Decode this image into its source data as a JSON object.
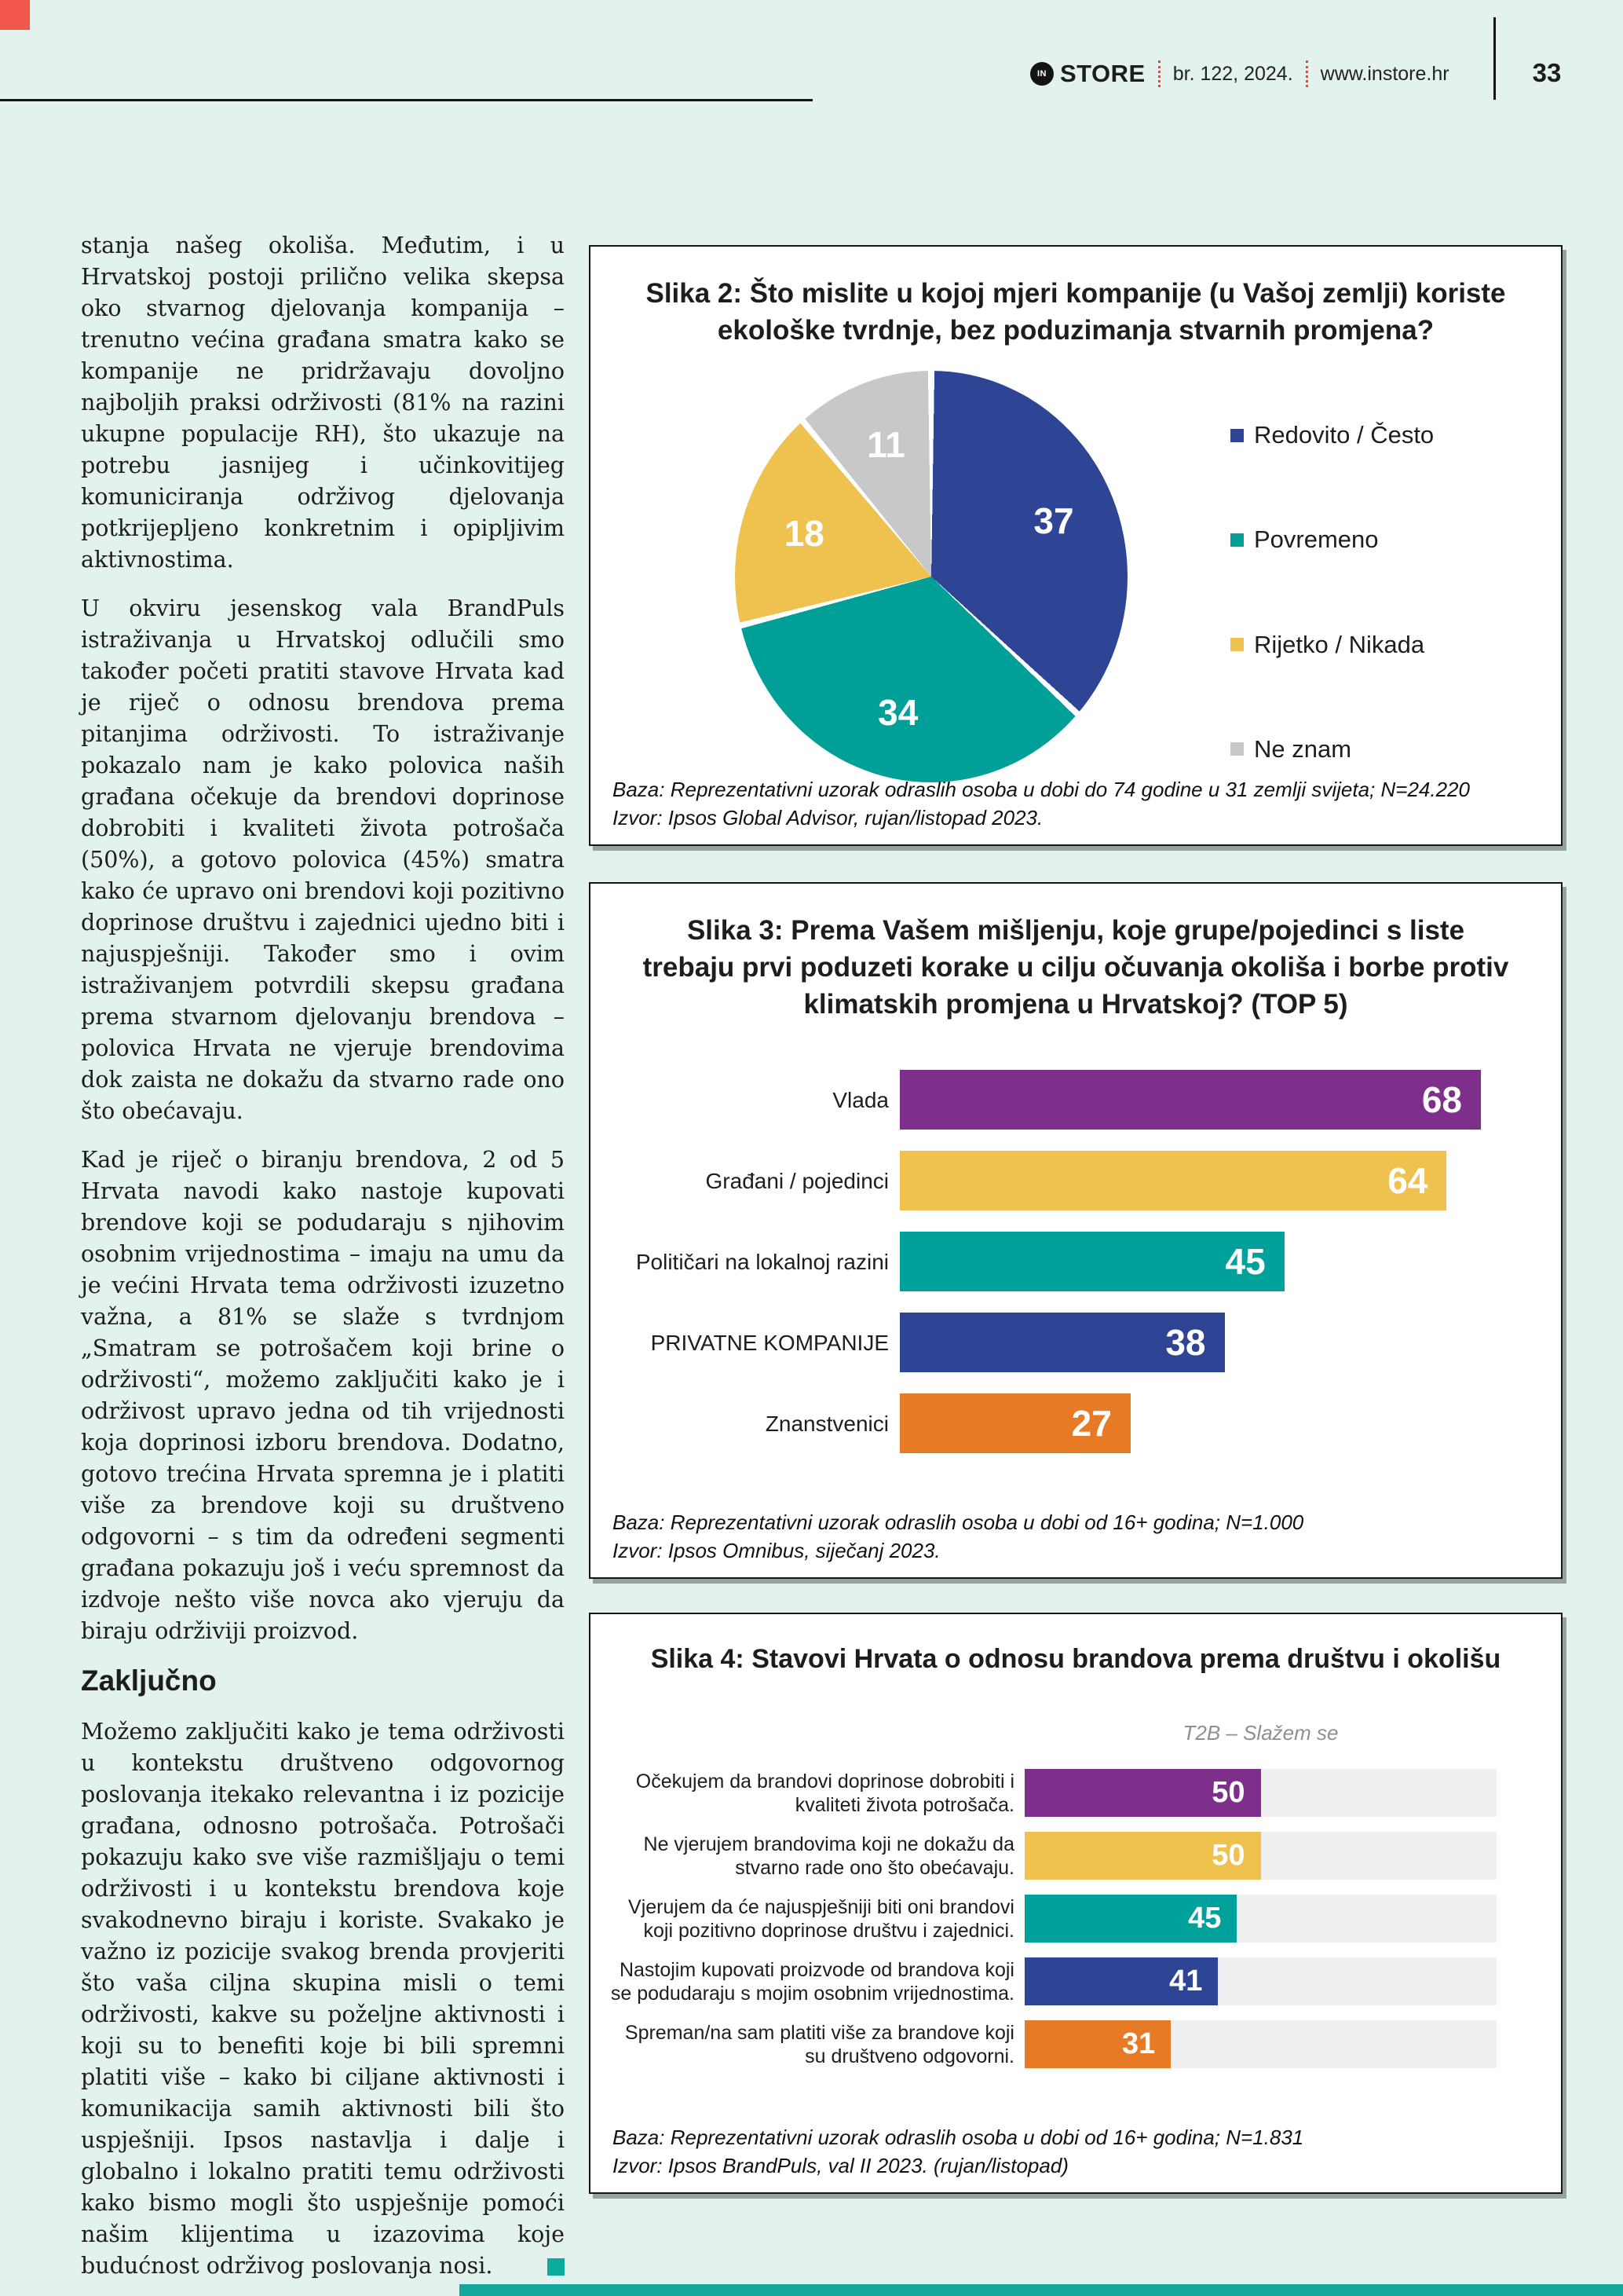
{
  "page": {
    "background": "#e4f2ee",
    "accent_red": "#f2574d",
    "accent_teal": "#0caa9d"
  },
  "header": {
    "brand_prefix": "IN",
    "brand": "STORE",
    "issue": "br. 122, 2024.",
    "website": "www.instore.hr",
    "page_number": "33"
  },
  "article": {
    "heading": "Zaključno",
    "paragraphs": [
      "stanja našeg okoliša. Međutim, i u Hrvatskoj postoji prilično velika skepsa oko stvarnog djelovanja kompanija – trenutno većina građana smatra kako se kompanije ne pridržavaju dovoljno najboljih praksi održivosti (81% na razini ukupne populacije RH), što ukazuje na potrebu jasnijeg i učinkovitijeg komuniciranja održivog djelovanja potkrijepljeno konkretnim i opipljivim aktivnostima.",
      "U okviru jesenskog vala BrandPuls istraživanja u Hrvatskoj odlučili smo također početi pratiti  stavove Hrvata kad je riječ o odnosu brendova prema pitanjima održivosti. To istraživanje pokazalo nam je kako polovica naših građana očekuje da brendovi doprinose dobrobiti i kvaliteti života potrošača (50%), a gotovo polovica (45%) smatra kako će upravo oni brendovi koji pozitivno doprinose društvu i zajednici ujedno biti i najuspješniji. Također smo i ovim istraživanjem potvrdili skepsu građana prema stvarnom djelovanju brendova – polovica Hrvata ne vjeruje brendovima dok zaista ne dokažu da stvarno rade ono što obećavaju.",
      "Kad je riječ o biranju brendova, 2 od 5 Hrvata navodi kako nastoje kupovati brendove koji se podudaraju s njihovim osobnim vrijednostima – imaju na umu da je većini Hrvata tema održivosti izuzetno važna, a 81% se slaže s tvrdnjom „Smatram se potrošačem koji brine o održivosti“, možemo zaključiti kako je i održivost upravo jedna od tih vrijednosti koja doprinosi izboru brendova. Dodatno, gotovo trećina Hrvata spremna je i platiti više za brendove koji su društveno odgovorni – s tim da određeni segmenti građana pokazuju još i veću spremnost da izdvoje nešto više novca ako vjeruju da biraju održiviji proizvod.",
      "Možemo zaključiti kako je tema održivosti u kontekstu društveno odgovornog poslovanja itekako relevantna i iz pozicije građana, odnosno potrošača. Potrošači pokazuju kako sve više razmišljaju o temi održivosti i u kontekstu brendova koje svakodnevno biraju i koriste. Svakako je važno iz pozicije svakog brenda provjeriti što vaša ciljna skupina misli o temi održivosti, kakve su poželjne aktivnosti i koji su to benefiti koje bi bili spremni platiti više – kako bi ciljane aktivnosti i komunikacija samih aktivnosti bili što uspješniji. Ipsos nastavlja i dalje i globalno i lokalno pratiti temu održivosti kako bismo mogli što uspješnije pomoći našim klijentima u izazovima koje budućnost održivog poslovanja nosi."
    ]
  },
  "chart_data": [
    {
      "type": "pie",
      "title": "Slika 2: Što mislite u kojoj mjeri kompanije (u Vašoj zemlji) koriste ekološke tvrdnje, bez poduzimanja stvarnih promjena?",
      "categories": [
        "Redovito / Često",
        "Povremeno",
        "Rijetko / Nikada",
        "Ne znam"
      ],
      "values": [
        37,
        34,
        18,
        11
      ],
      "colors": [
        "#2e4596",
        "#009f98",
        "#efc14f",
        "#c8c8ca"
      ],
      "legend_position": "right",
      "baza": "Baza: Reprezentativni uzorak odraslih osoba u dobi do 74 godine u 31 zemlji svijeta; N=24.220",
      "izvor": "Izvor: Ipsos Global Advisor, rujan/listopad 2023."
    },
    {
      "type": "bar",
      "title": "Slika 3: Prema Vašem mišljenju, koje grupe/pojedinci s liste trebaju prvi poduzeti korake u cilju očuvanja okoliša i borbe protiv klimatskih promjena u Hrvatskoj? (TOP 5)",
      "categories": [
        "Vlada",
        "Građani / pojedinci",
        "Političari na lokalnoj razini",
        "PRIVATNE KOMPANIJE",
        "Znanstvenici"
      ],
      "values": [
        68,
        64,
        45,
        38,
        27
      ],
      "colors": [
        "#7e2f8c",
        "#efc14f",
        "#00a19a",
        "#2e4596",
        "#e77b25"
      ],
      "orientation": "horizontal",
      "axis_max": 68,
      "baza": "Baza: Reprezentativni uzorak odraslih osoba u dobi od 16+ godina; N=1.000",
      "izvor": "Izvor: Ipsos Omnibus, siječanj 2023."
    },
    {
      "type": "bar",
      "title": "Slika 4: Stavovi Hrvata o odnosu brandova prema društvu i okolišu",
      "subtitle": "T2B –  Slažem se",
      "categories": [
        "Očekujem da brandovi doprinose dobrobiti i kvaliteti života potrošača.",
        "Ne vjerujem brandovima koji ne dokažu da stvarno rade ono što obećavaju.",
        "Vjerujem da će najuspješniji biti oni brandovi koji pozitivno doprinose društvu i zajednici.",
        "Nastojim kupovati proizvode od brandova koji se podudaraju s mojim osobnim vrijednostima.",
        "Spreman/na sam platiti više za brandove koji su društveno odgovorni."
      ],
      "values": [
        50,
        50,
        45,
        41,
        31
      ],
      "colors": [
        "#7e2f8c",
        "#efc14f",
        "#00a19a",
        "#2e4596",
        "#e77b25"
      ],
      "orientation": "horizontal",
      "axis_max": 100,
      "track_color": "#efefef",
      "baza": "Baza: Reprezentativni uzorak odraslih osoba u dobi od 16+ godina; N=1.831",
      "izvor": "Izvor: Ipsos BrandPuls, val II 2023. (rujan/listopad)"
    }
  ]
}
